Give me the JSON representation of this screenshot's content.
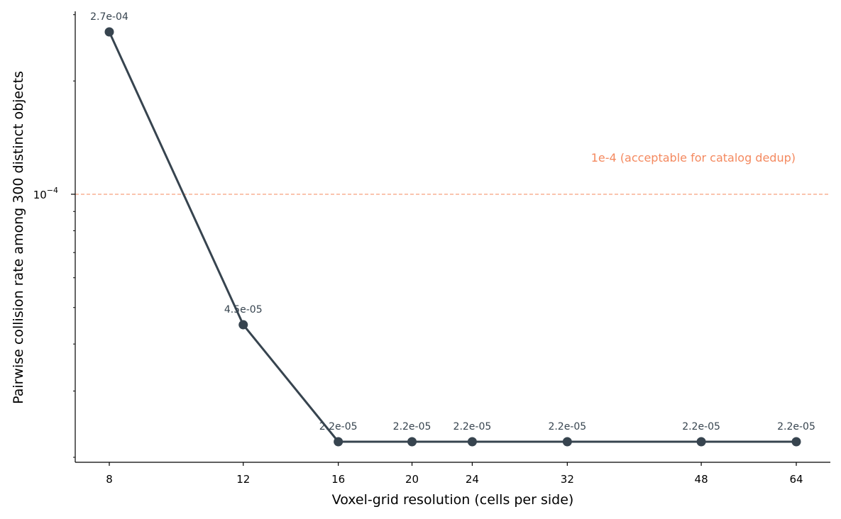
{
  "chart_data": {
    "type": "line",
    "x_scale": "log",
    "y_scale": "log",
    "xlabel": "Voxel-grid resolution (cells per side)",
    "ylabel": "Pairwise collision rate among 300 distinct objects",
    "x_ticks": [
      8,
      12,
      16,
      20,
      24,
      32,
      48,
      64
    ],
    "x_tick_labels": [
      "8",
      "12",
      "16",
      "20",
      "24",
      "32",
      "48",
      "64"
    ],
    "y_tick_label_base": "10",
    "y_tick_label_exp": "−4",
    "series": [
      {
        "x": [
          8,
          12,
          16,
          20,
          24,
          32,
          48,
          64
        ],
        "y": [
          0.00027,
          4.5e-05,
          2.2e-05,
          2.2e-05,
          2.2e-05,
          2.2e-05,
          2.2e-05,
          2.2e-05
        ],
        "labels": [
          "2.7e-04",
          "4.5e-05",
          "2.2e-05",
          "2.2e-05",
          "2.2e-05",
          "2.2e-05",
          "2.2e-05",
          "2.2e-05"
        ],
        "color": "#37444f"
      }
    ],
    "threshold": {
      "value": 0.0001,
      "label": "1e-4 (acceptable for catalog dedup)",
      "color": "#f4895f",
      "style": "dashed"
    },
    "grid": false,
    "legend": "none"
  }
}
